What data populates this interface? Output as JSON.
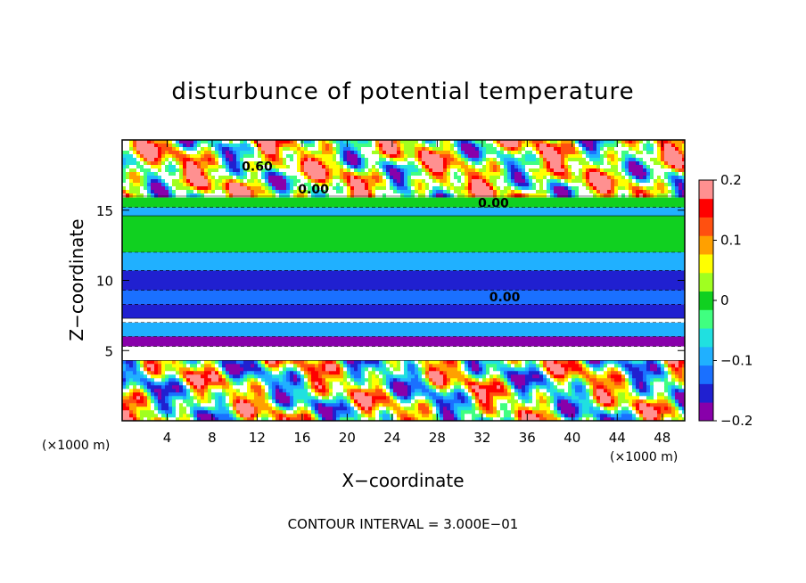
{
  "chart_data": {
    "type": "heatmap",
    "title": "disturbunce of potential temperature",
    "xlabel": "X−coordinate",
    "ylabel": "Z−coordinate",
    "x_unit": "(×1000 m)",
    "z_unit": "(×1000 m)",
    "xlim": [
      0,
      50
    ],
    "zlim": [
      0,
      20
    ],
    "x_ticks": [
      4,
      8,
      12,
      16,
      20,
      24,
      28,
      32,
      36,
      40,
      44,
      48
    ],
    "z_ticks": [
      5,
      10,
      15
    ],
    "contour_interval_text": "CONTOUR INTERVAL = 3.000E−01",
    "contour_labels": [
      {
        "text": "0.60",
        "x": 12,
        "z": 17.8
      },
      {
        "text": "0.00",
        "x": 17,
        "z": 16.2
      },
      {
        "text": "0.00",
        "x": 33,
        "z": 15.2
      },
      {
        "text": "0.00",
        "x": 34,
        "z": 8.5
      }
    ],
    "colorbar": {
      "range": [
        -0.2,
        0.2
      ],
      "tick_labels": [
        "0.2",
        "0.1",
        "0",
        "−0.1",
        "−0.2"
      ],
      "tick_values": [
        0.2,
        0.1,
        0,
        -0.1,
        -0.2
      ],
      "colors": [
        "#8800aa",
        "#2020d0",
        "#1a70ff",
        "#20b0ff",
        "#20e0e0",
        "#40ff80",
        "#10d020",
        "#a0ff20",
        "#ffff00",
        "#ffa000",
        "#ff5010",
        "#ff0000",
        "#ff9090"
      ]
    },
    "field_bands": [
      {
        "z_min": 0.0,
        "z_max": 4.3,
        "value": 0.0,
        "pattern": "turbulent"
      },
      {
        "z_min": 4.3,
        "z_max": 5.3,
        "value": -0.02,
        "pattern": "white"
      },
      {
        "z_min": 5.3,
        "z_max": 6.0,
        "value": -0.19,
        "pattern": "band"
      },
      {
        "z_min": 6.0,
        "z_max": 7.0,
        "value": -0.09,
        "pattern": "band"
      },
      {
        "z_min": 7.0,
        "z_max": 7.3,
        "value": 0.0,
        "pattern": "white"
      },
      {
        "z_min": 7.3,
        "z_max": 8.3,
        "value": -0.14,
        "pattern": "band"
      },
      {
        "z_min": 8.3,
        "z_max": 9.3,
        "value": -0.11,
        "pattern": "band"
      },
      {
        "z_min": 9.3,
        "z_max": 10.7,
        "value": -0.15,
        "pattern": "band"
      },
      {
        "z_min": 10.7,
        "z_max": 12.0,
        "value": -0.08,
        "pattern": "band"
      },
      {
        "z_min": 12.0,
        "z_max": 14.6,
        "value": 0.0,
        "pattern": "band"
      },
      {
        "z_min": 14.6,
        "z_max": 15.2,
        "value": -0.1,
        "pattern": "band"
      },
      {
        "z_min": 15.2,
        "z_max": 16.0,
        "value": 0.0,
        "pattern": "band"
      },
      {
        "z_min": 16.0,
        "z_max": 20.0,
        "value": 0.03,
        "pattern": "turbulent"
      }
    ]
  }
}
